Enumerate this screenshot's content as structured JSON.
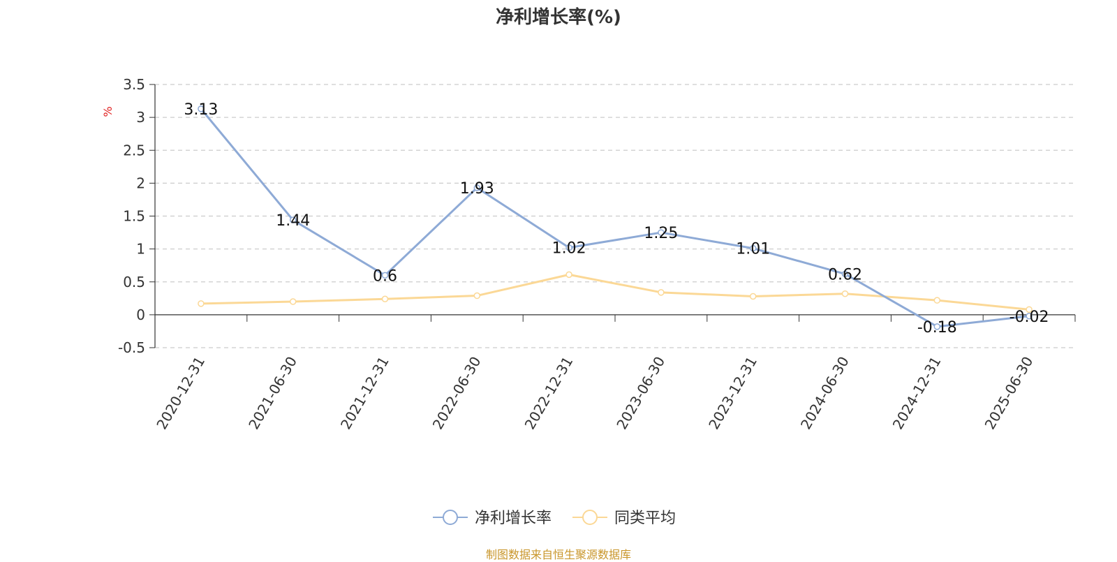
{
  "title": "净利增长率(%)",
  "source_note": "制图数据来自恒生聚源数据库",
  "colors": {
    "series_main": "#8eaad6",
    "series_avg": "#fbd896",
    "grid": "#cccccc",
    "axis": "#333333",
    "unit": "#e02020",
    "source": "#c9962b"
  },
  "chart_data": {
    "type": "line",
    "title": "净利增长率(%)",
    "ylabel": "%",
    "ylim": [
      -0.5,
      3.5
    ],
    "yticks": [
      "3.5",
      "3",
      "2.5",
      "2",
      "1.5",
      "1",
      "0.5",
      "0",
      "-0.5"
    ],
    "grid": true,
    "legend_position": "bottom-center",
    "categories": [
      "2020-12-31",
      "2021-06-30",
      "2021-12-31",
      "2022-06-30",
      "2022-12-31",
      "2023-06-30",
      "2023-12-31",
      "2024-06-30",
      "2024-12-31",
      "2025-06-30"
    ],
    "series": [
      {
        "name": "净利增长率",
        "values": [
          3.13,
          1.44,
          0.6,
          1.93,
          1.02,
          1.25,
          1.01,
          0.62,
          -0.18,
          -0.02
        ],
        "labels": [
          "3.13",
          "1.44",
          "0.6",
          "1.93",
          "1.02",
          "1.25",
          "1.01",
          "0.62",
          "-0.18",
          "-0.02"
        ],
        "color": "#8eaad6"
      },
      {
        "name": "同类平均",
        "values": [
          0.17,
          0.2,
          0.24,
          0.29,
          0.61,
          0.34,
          0.28,
          0.32,
          0.22,
          0.08
        ],
        "color": "#fbd896"
      }
    ]
  }
}
